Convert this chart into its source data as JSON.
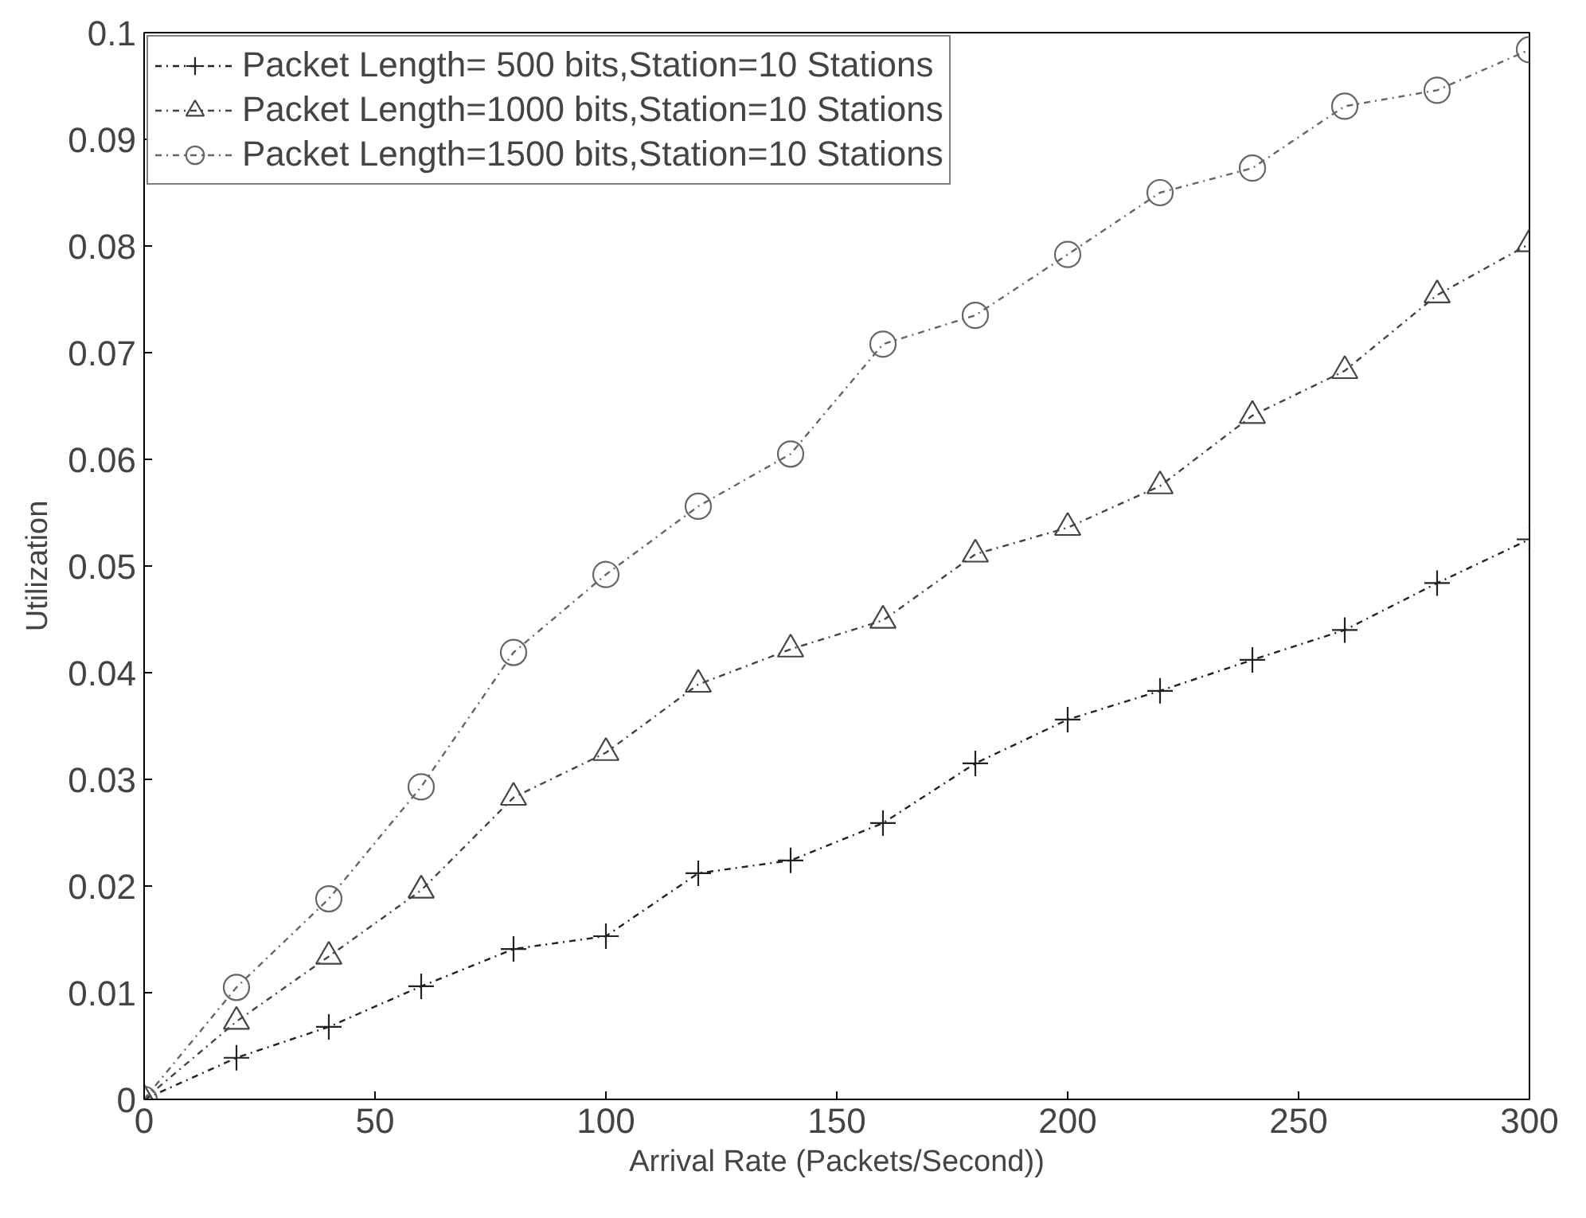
{
  "chart_data": {
    "type": "line",
    "xlabel": "Arrival Rate (Packets/Second))",
    "ylabel": "Utilization",
    "x": [
      0,
      20,
      40,
      60,
      80,
      100,
      120,
      140,
      160,
      180,
      200,
      220,
      240,
      260,
      280,
      300
    ],
    "xlim": [
      0,
      300
    ],
    "xticks": [
      0,
      50,
      100,
      150,
      200,
      250,
      300
    ],
    "ylim": [
      0,
      0.1
    ],
    "yticks": [
      0,
      0.01,
      0.02,
      0.03,
      0.04,
      0.05,
      0.06,
      0.07,
      0.08,
      0.09,
      0.1
    ],
    "grid": false,
    "legend": "top left",
    "line_style": "dashed",
    "series": [
      {
        "name": "Packet Length= 500 bits,Station=10 Stations",
        "color": "#222222",
        "marker": "cross",
        "values": [
          0,
          0.0039,
          0.0068,
          0.0106,
          0.0141,
          0.0153,
          0.0212,
          0.0224,
          0.0259,
          0.0315,
          0.0356,
          0.0383,
          0.0412,
          0.044,
          0.0484,
          0.0525
        ]
      },
      {
        "name": "Packet Length=1000 bits,Station=10 Stations",
        "color": "#444444",
        "marker": "triangle",
        "values": [
          0,
          0.0073,
          0.0134,
          0.0196,
          0.0283,
          0.0325,
          0.0389,
          0.0422,
          0.0449,
          0.0511,
          0.0536,
          0.0575,
          0.0641,
          0.0683,
          0.0754,
          0.0802
        ]
      },
      {
        "name": "Packet Length=1500 bits,Station=10 Stations",
        "color": "#666666",
        "marker": "circle",
        "values": [
          0,
          0.0105,
          0.0188,
          0.0293,
          0.0419,
          0.0492,
          0.0556,
          0.0605,
          0.0708,
          0.0735,
          0.0792,
          0.085,
          0.0873,
          0.0931,
          0.0946,
          0.0984
        ]
      }
    ]
  }
}
